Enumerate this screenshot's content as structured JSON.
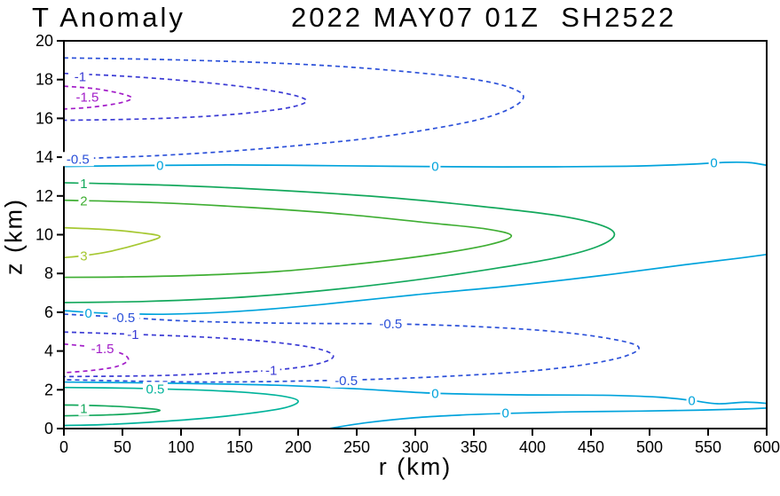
{
  "title": {
    "left": "T Anomaly",
    "right": "2022 MAY07 01Z  SH2522"
  },
  "axes": {
    "x": {
      "label": "r (km)",
      "min": 0,
      "max": 600,
      "ticks": [
        0,
        50,
        100,
        150,
        200,
        250,
        300,
        350,
        400,
        450,
        500,
        550,
        600
      ]
    },
    "y": {
      "label": "z (km)",
      "min": 0,
      "max": 20,
      "ticks": [
        0,
        2,
        4,
        6,
        8,
        10,
        12,
        14,
        16,
        18,
        20
      ]
    }
  },
  "chart_data": {
    "type": "contour",
    "title": "T Anomaly 2022 MAY07 01Z SH2522",
    "xlabel": "r (km)",
    "ylabel": "z (km)",
    "xlim": [
      0,
      600
    ],
    "ylim": [
      0,
      20
    ],
    "grid": false,
    "levels": [
      -1.5,
      -1,
      -0.5,
      0,
      0.5,
      1,
      2,
      3
    ],
    "level_styles": {
      "-1.5": {
        "color": "#a21cc8",
        "dash": true
      },
      "-1": {
        "color": "#3a3ad4",
        "dash": true
      },
      "-0.5": {
        "color": "#2b50d9",
        "dash": true
      },
      "0": {
        "color": "#00a3dc",
        "dash": false
      },
      "0.5": {
        "color": "#00b39b",
        "dash": false
      },
      "1": {
        "color": "#13a85c",
        "dash": false
      },
      "2": {
        "color": "#3fae33",
        "dash": false
      },
      "3": {
        "color": "#a6c832",
        "dash": false
      }
    },
    "contours": [
      {
        "level": 0,
        "points": [
          [
            0,
            13.52
          ],
          [
            70,
            13.57
          ],
          [
            140,
            13.6
          ],
          [
            210,
            13.57
          ],
          [
            280,
            13.53
          ],
          [
            350,
            13.5
          ],
          [
            420,
            13.5
          ],
          [
            480,
            13.53
          ],
          [
            530,
            13.62
          ],
          [
            565,
            13.73
          ],
          [
            585,
            13.72
          ],
          [
            600,
            13.58
          ]
        ],
        "labels": [
          [
            82,
            13.58
          ],
          [
            317,
            13.52
          ],
          [
            555,
            13.7
          ]
        ]
      },
      {
        "level": 0,
        "points": [
          [
            0,
            6.08
          ],
          [
            40,
            5.94
          ],
          [
            90,
            5.9
          ],
          [
            150,
            6.05
          ],
          [
            220,
            6.4
          ],
          [
            300,
            6.9
          ],
          [
            380,
            7.35
          ],
          [
            460,
            7.9
          ],
          [
            530,
            8.45
          ],
          [
            575,
            8.78
          ],
          [
            600,
            8.98
          ]
        ],
        "labels": [
          [
            21,
            5.95
          ]
        ]
      },
      {
        "level": 1,
        "points": [
          [
            0,
            12.68
          ],
          [
            90,
            12.55
          ],
          [
            180,
            12.3
          ],
          [
            270,
            11.95
          ],
          [
            350,
            11.5
          ],
          [
            420,
            11.0
          ],
          [
            458,
            10.5
          ],
          [
            470,
            10.0
          ],
          [
            456,
            9.4
          ],
          [
            420,
            8.8
          ],
          [
            362,
            8.2
          ],
          [
            292,
            7.6
          ],
          [
            218,
            7.1
          ],
          [
            145,
            6.75
          ],
          [
            70,
            6.56
          ],
          [
            0,
            6.5
          ]
        ],
        "labels": [
          [
            17,
            12.63
          ]
        ]
      },
      {
        "level": 2,
        "points": [
          [
            0,
            11.78
          ],
          [
            80,
            11.65
          ],
          [
            160,
            11.4
          ],
          [
            240,
            11.05
          ],
          [
            310,
            10.62
          ],
          [
            360,
            10.3
          ],
          [
            382,
            9.95
          ],
          [
            364,
            9.5
          ],
          [
            318,
            9.0
          ],
          [
            252,
            8.5
          ],
          [
            182,
            8.1
          ],
          [
            110,
            7.9
          ],
          [
            50,
            7.82
          ],
          [
            0,
            7.8
          ]
        ],
        "labels": [
          [
            17,
            11.73
          ]
        ]
      },
      {
        "level": 3,
        "points": [
          [
            0,
            10.36
          ],
          [
            35,
            10.27
          ],
          [
            65,
            10.1
          ],
          [
            82,
            9.9
          ],
          [
            66,
            9.55
          ],
          [
            38,
            9.12
          ],
          [
            17,
            8.92
          ],
          [
            0,
            8.82
          ]
        ],
        "labels": [
          [
            17,
            8.9
          ]
        ]
      },
      {
        "level": 0,
        "points": [
          [
            0,
            2.4
          ],
          [
            90,
            2.34
          ],
          [
            180,
            2.24
          ],
          [
            250,
            2.05
          ],
          [
            317,
            1.82
          ],
          [
            390,
            1.74
          ],
          [
            460,
            1.72
          ],
          [
            508,
            1.62
          ],
          [
            536,
            1.45
          ],
          [
            558,
            1.28
          ],
          [
            582,
            1.36
          ],
          [
            600,
            1.3
          ]
        ],
        "labels": [
          [
            317,
            1.8
          ],
          [
            536,
            1.44
          ]
        ]
      },
      {
        "level": 0,
        "points": [
          [
            226,
            0.0
          ],
          [
            258,
            0.3
          ],
          [
            300,
            0.56
          ],
          [
            340,
            0.7
          ],
          [
            377,
            0.78
          ],
          [
            432,
            0.86
          ],
          [
            492,
            0.9
          ],
          [
            542,
            0.95
          ],
          [
            576,
            1.0
          ],
          [
            600,
            1.06
          ]
        ],
        "labels": [
          [
            377,
            0.8
          ]
        ]
      },
      {
        "level": 0.5,
        "points": [
          [
            0,
            2.12
          ],
          [
            60,
            2.08
          ],
          [
            110,
            2.0
          ],
          [
            152,
            1.88
          ],
          [
            186,
            1.68
          ],
          [
            200,
            1.42
          ],
          [
            189,
            1.08
          ],
          [
            158,
            0.78
          ],
          [
            118,
            0.52
          ],
          [
            72,
            0.32
          ],
          [
            32,
            0.2
          ],
          [
            0,
            0.16
          ]
        ],
        "labels": [
          [
            78,
            2.04
          ]
        ]
      },
      {
        "level": 1,
        "points": [
          [
            0,
            1.22
          ],
          [
            35,
            1.17
          ],
          [
            66,
            1.06
          ],
          [
            82,
            0.94
          ],
          [
            67,
            0.8
          ],
          [
            36,
            0.7
          ],
          [
            0,
            0.66
          ]
        ],
        "labels": [
          [
            17,
            1.02
          ]
        ]
      },
      {
        "level": -0.5,
        "points": [
          [
            0,
            19.12
          ],
          [
            80,
            19.04
          ],
          [
            160,
            18.9
          ],
          [
            230,
            18.7
          ],
          [
            290,
            18.42
          ],
          [
            340,
            18.1
          ],
          [
            374,
            17.72
          ],
          [
            392,
            17.2
          ],
          [
            384,
            16.6
          ],
          [
            358,
            16.0
          ],
          [
            318,
            15.5
          ],
          [
            264,
            15.0
          ],
          [
            200,
            14.6
          ],
          [
            140,
            14.3
          ],
          [
            80,
            14.08
          ],
          [
            30,
            13.96
          ],
          [
            0,
            13.9
          ]
        ],
        "labels": [
          [
            12,
            13.9
          ]
        ]
      },
      {
        "level": -1,
        "points": [
          [
            0,
            18.32
          ],
          [
            50,
            18.18
          ],
          [
            102,
            17.95
          ],
          [
            152,
            17.64
          ],
          [
            190,
            17.28
          ],
          [
            207,
            16.92
          ],
          [
            194,
            16.58
          ],
          [
            158,
            16.28
          ],
          [
            108,
            16.06
          ],
          [
            54,
            15.95
          ],
          [
            0,
            15.9
          ]
        ],
        "labels": [
          [
            14,
            18.14
          ]
        ]
      },
      {
        "level": -1.5,
        "points": [
          [
            0,
            17.66
          ],
          [
            25,
            17.54
          ],
          [
            47,
            17.3
          ],
          [
            58,
            17.05
          ],
          [
            48,
            16.8
          ],
          [
            24,
            16.58
          ],
          [
            0,
            16.48
          ]
        ],
        "labels": [
          [
            20,
            17.1
          ]
        ]
      },
      {
        "level": -0.5,
        "points": [
          [
            0,
            5.9
          ],
          [
            45,
            5.76
          ],
          [
            100,
            5.56
          ],
          [
            160,
            5.46
          ],
          [
            220,
            5.42
          ],
          [
            279,
            5.4
          ],
          [
            345,
            5.28
          ],
          [
            410,
            5.05
          ],
          [
            460,
            4.7
          ],
          [
            490,
            4.25
          ],
          [
            480,
            3.75
          ],
          [
            445,
            3.3
          ],
          [
            395,
            2.95
          ],
          [
            335,
            2.72
          ],
          [
            270,
            2.55
          ],
          [
            200,
            2.45
          ],
          [
            130,
            2.4
          ],
          [
            65,
            2.44
          ],
          [
            0,
            2.52
          ]
        ],
        "labels": [
          [
            51,
            5.72
          ],
          [
            279,
            5.4
          ],
          [
            241,
            2.48
          ]
        ]
      },
      {
        "level": -1,
        "points": [
          [
            0,
            4.98
          ],
          [
            60,
            4.86
          ],
          [
            125,
            4.7
          ],
          [
            180,
            4.45
          ],
          [
            218,
            4.1
          ],
          [
            230,
            3.7
          ],
          [
            214,
            3.3
          ],
          [
            180,
            3.02
          ],
          [
            130,
            2.85
          ],
          [
            78,
            2.73
          ],
          [
            0,
            2.68
          ]
        ],
        "labels": [
          [
            59,
            4.86
          ],
          [
            177,
            3.0
          ]
        ]
      },
      {
        "level": -1.5,
        "points": [
          [
            0,
            4.36
          ],
          [
            28,
            4.18
          ],
          [
            48,
            3.9
          ],
          [
            55,
            3.55
          ],
          [
            45,
            3.2
          ],
          [
            24,
            3.0
          ],
          [
            0,
            2.88
          ]
        ],
        "labels": [
          [
            33,
            4.12
          ]
        ]
      }
    ]
  }
}
